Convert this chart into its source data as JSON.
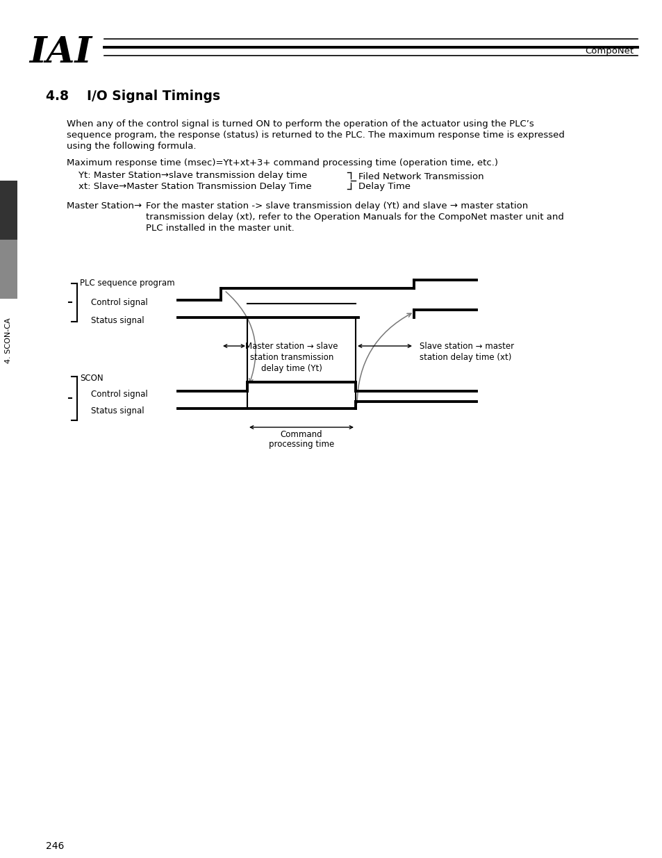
{
  "bg_color": "#ffffff",
  "text_color": "#000000",
  "header_text": "CompoNet",
  "logo_text": "IAI",
  "section_title": "4.8    I/O Signal Timings",
  "body_text1": "When any of the control signal is turned ON to perform the operation of the actuator using the PLC’s",
  "body_text2": "sequence program, the response (status) is returned to the PLC. The maximum response time is expressed",
  "body_text3": "using the following formula.",
  "formula_text": "Maximum response time (msec)=Yt+xt+3+ command processing time (operation time, etc.)",
  "yt_text": "    Yt: Master Station→slave transmission delay time",
  "xt_text": "    xt: Slave→Master Station Transmission Delay Time",
  "brace_text1": "Filed Network Transmission",
  "brace_text2": "Delay Time",
  "master_note_label": "Master Station→",
  "master_note_line1": "For the master station -> slave transmission delay (Yt) and slave → master station",
  "master_note_line2": "transmission delay (xt), refer to the Operation Manuals for the CompoNet master unit and",
  "master_note_line3": "PLC installed in the master unit.",
  "sidebar_text": "4. SCON-CA",
  "page_number": "246",
  "plc_label": "PLC sequence program",
  "control_signal_label1": "Control signal",
  "status_signal_label1": "Status signal",
  "scon_label": "SCON",
  "control_signal_label2": "Control signal",
  "status_signal_label2": "Status signal",
  "master_slave_line1": "Master station → slave",
  "master_slave_line2": "station transmission",
  "master_slave_line3": "delay time (Yt)",
  "slave_master_line1": "Slave station → master",
  "slave_master_line2": "station delay time (xt)",
  "command_line1": "Command",
  "command_line2": "processing time"
}
